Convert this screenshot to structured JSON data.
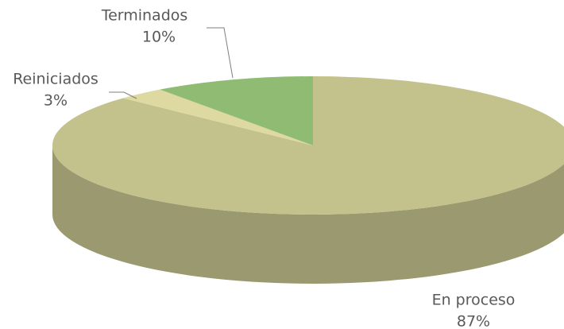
{
  "chart_data": {
    "type": "pie",
    "categories": [
      "En proceso",
      "Reiniciados",
      "Terminados"
    ],
    "values": [
      87,
      3,
      10
    ],
    "value_labels": [
      "87%",
      "3%",
      "10%"
    ],
    "colors": [
      "#c3c28c",
      "#ddd9a1",
      "#8fbb72"
    ]
  }
}
